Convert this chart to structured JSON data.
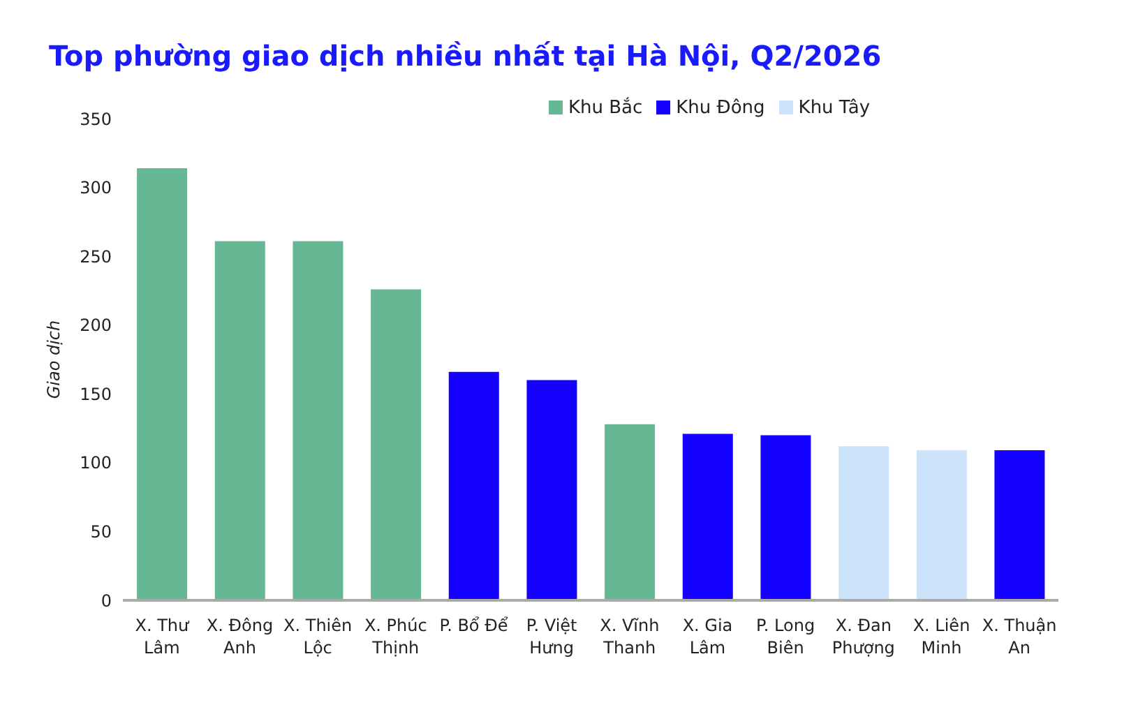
{
  "chart_data": {
    "type": "bar",
    "title": "Top phường giao dịch nhiều nhất tại Hà Nội, Q2/2026",
    "ylabel": "Giao dịch",
    "categories": [
      "X. Thư Lâm",
      "X. Đông Anh",
      "X. Thiên Lộc",
      "X. Phúc Thịnh",
      "P. Bổ Để",
      "P. Việt Hưng",
      "X. Vĩnh Thanh",
      "X. Gia Lâm",
      "P. Long Biên",
      "X. Đan Phượng",
      "X. Liên Minh",
      "X. Thuận An"
    ],
    "series": [
      {
        "name": "Khu Bắc",
        "color": "#66b794",
        "values": [
          314,
          261,
          261,
          226,
          null,
          null,
          128,
          null,
          null,
          null,
          null,
          null
        ]
      },
      {
        "name": "Khu Đông",
        "color": "#1400ff",
        "values": [
          null,
          null,
          null,
          null,
          166,
          160,
          null,
          121,
          120,
          null,
          null,
          109
        ]
      },
      {
        "name": "Khu Tây",
        "color": "#cce4fb",
        "values": [
          null,
          null,
          null,
          null,
          null,
          null,
          null,
          null,
          null,
          112,
          109,
          null
        ]
      }
    ],
    "stacked": true,
    "ylim": [
      0,
      350
    ],
    "yticks": [
      0,
      50,
      100,
      150,
      200,
      250,
      300,
      350
    ],
    "grid": false,
    "legend": "top"
  }
}
